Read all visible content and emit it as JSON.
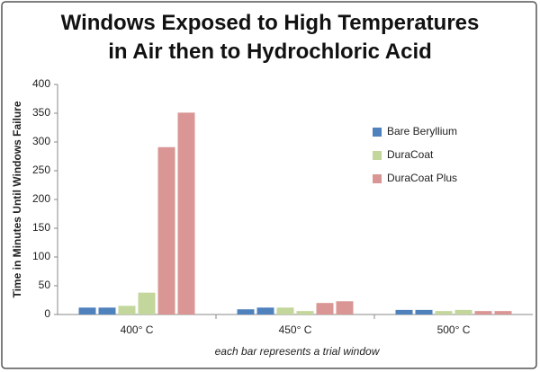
{
  "chart_data": {
    "type": "bar",
    "title": "Windows Exposed to High Temperatures in Air then to Hydrochloric Acid",
    "y_label": "Time in Minutes Until Windows Failure",
    "annotation": "each bar represents a trial window",
    "categories": [
      "400° C",
      "450° C",
      "500° C"
    ],
    "series": [
      {
        "name": "Bare Beryllium",
        "color": "#4f81bd",
        "values": [
          [
            12,
            12
          ],
          [
            9,
            12
          ],
          [
            8,
            8
          ]
        ]
      },
      {
        "name": "DuraCoat",
        "color": "#c3d69b",
        "values": [
          [
            15,
            38
          ],
          [
            12,
            6
          ],
          [
            6,
            8
          ]
        ]
      },
      {
        "name": "DuraCoat Plus",
        "color": "#d99694",
        "values": [
          [
            291,
            351
          ],
          [
            20,
            23
          ],
          [
            6,
            6
          ]
        ]
      }
    ],
    "ylim": [
      0,
      400
    ],
    "yticks": [
      0,
      50,
      100,
      150,
      200,
      250,
      300,
      350,
      400
    ],
    "grid": false,
    "legend": "right"
  }
}
